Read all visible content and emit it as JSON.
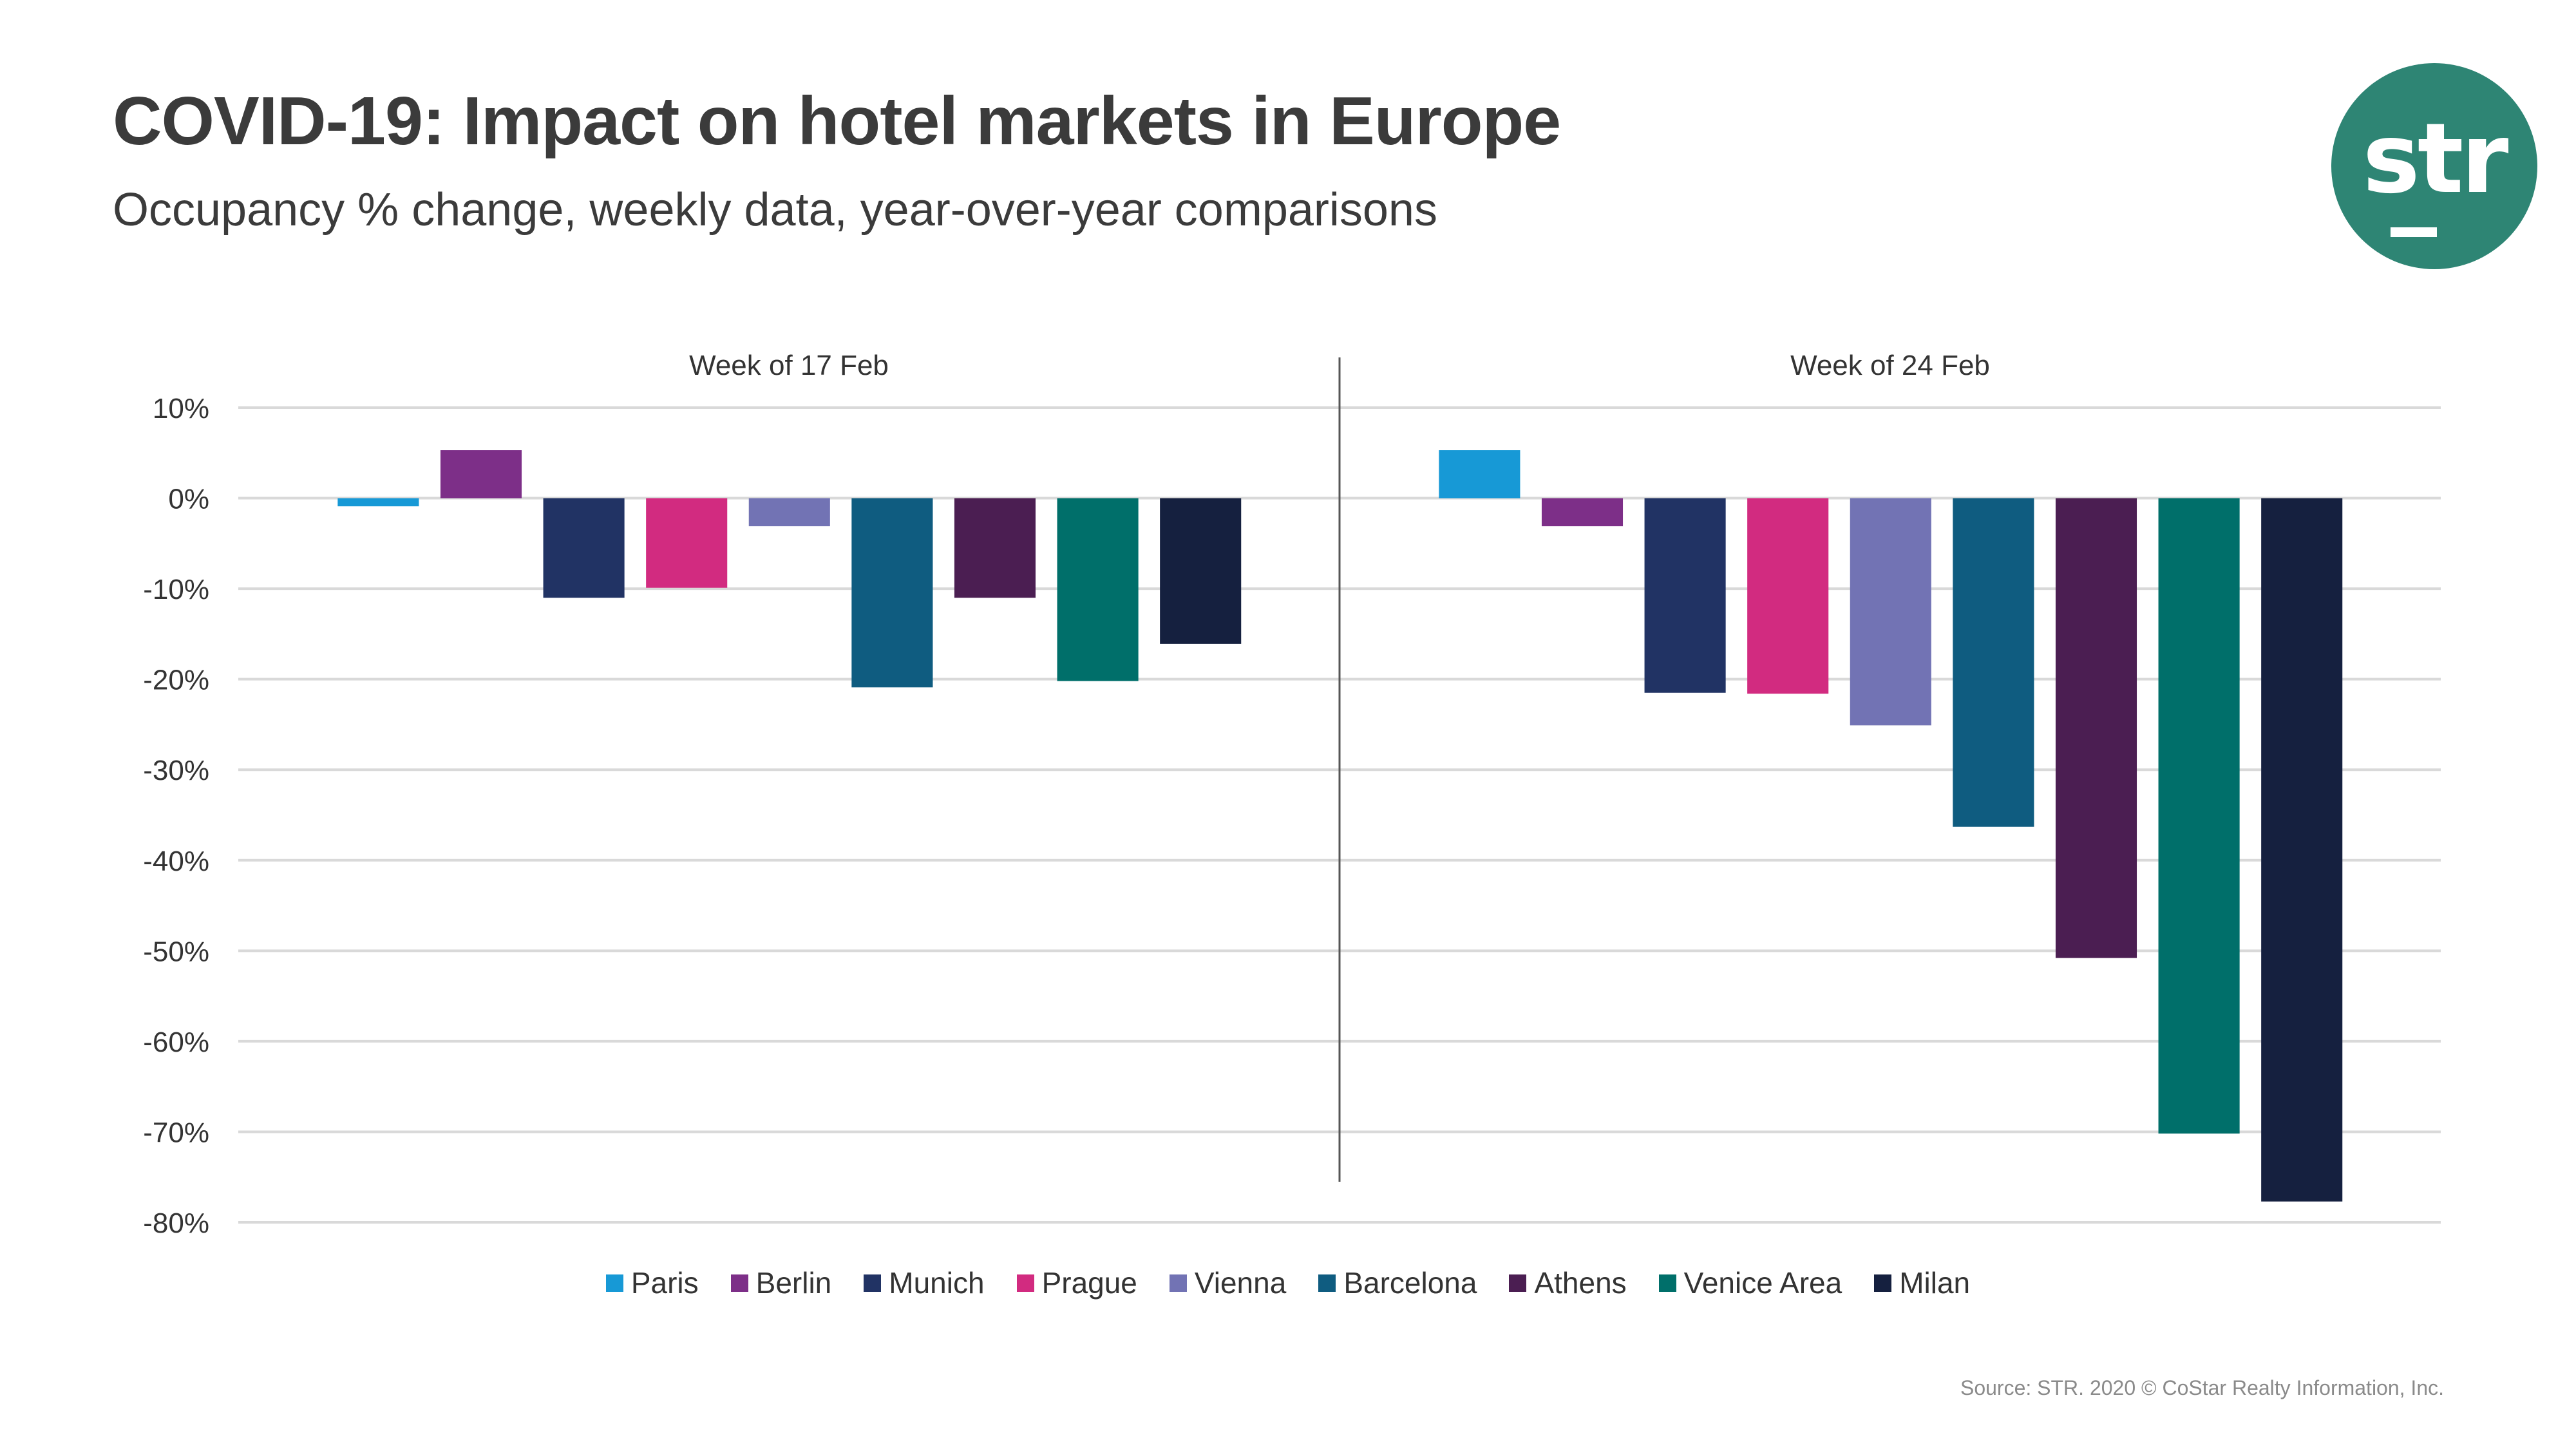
{
  "header": {
    "title": "COVID-19: Impact on hotel markets in Europe",
    "subtitle": "Occupancy % change, weekly data, year-over-year comparisons"
  },
  "logo": {
    "text": "str",
    "color": "#2e8574"
  },
  "footer": {
    "source": "Source: STR. 2020 © CoStar Realty Information, Inc."
  },
  "chart_data": {
    "type": "bar",
    "title": "COVID-19: Impact on hotel markets in Europe",
    "subtitle": "Occupancy % change, weekly data, year-over-year comparisons",
    "xlabel": "",
    "ylabel": "Occupancy % change",
    "ylim": [
      -80,
      10
    ],
    "yticks": [
      10,
      0,
      -10,
      -20,
      -30,
      -40,
      -50,
      -60,
      -70,
      -80
    ],
    "ytick_labels": [
      "10%",
      "0%",
      "-10%",
      "-20%",
      "-30%",
      "-40%",
      "-50%",
      "-60%",
      "-70%",
      "-80%"
    ],
    "grid": true,
    "legend_position": "bottom",
    "categories": [
      "Week of 17 Feb",
      "Week of 24 Feb"
    ],
    "series": [
      {
        "name": "Paris",
        "color": "#1799d6",
        "values": [
          -0.9,
          5.3
        ]
      },
      {
        "name": "Berlin",
        "color": "#7d2f88",
        "values": [
          5.3,
          -3.1
        ]
      },
      {
        "name": "Munich",
        "color": "#213364",
        "values": [
          -11.0,
          -21.5
        ]
      },
      {
        "name": "Prague",
        "color": "#d22b80",
        "values": [
          -9.9,
          -21.6
        ]
      },
      {
        "name": "Vienna",
        "color": "#7273b4",
        "values": [
          -3.1,
          -25.1
        ]
      },
      {
        "name": "Barcelona",
        "color": "#0f5c80",
        "values": [
          -20.9,
          -36.3
        ]
      },
      {
        "name": "Athens",
        "color": "#4b1e52",
        "values": [
          -11.0,
          -50.8
        ]
      },
      {
        "name": "Venice Area",
        "color": "#006f6a",
        "values": [
          -20.2,
          -70.2
        ]
      },
      {
        "name": "Milan",
        "color": "#15203f",
        "values": [
          -16.1,
          -77.7
        ]
      }
    ]
  }
}
